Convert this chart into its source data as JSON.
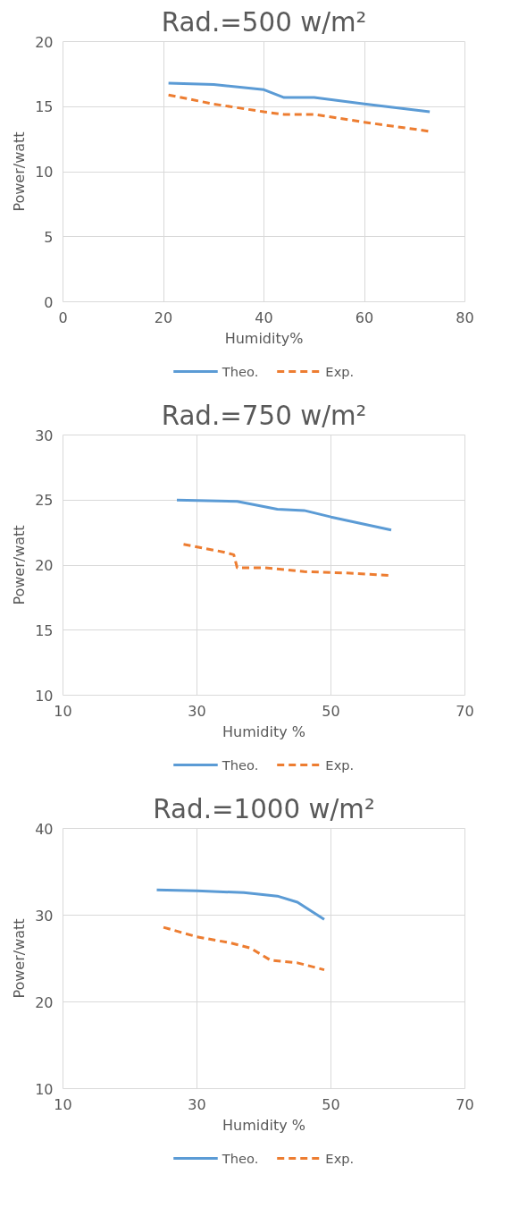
{
  "chart_data": [
    {
      "type": "line",
      "title": "Rad.=500 w/m²",
      "xlabel": "Humidity%",
      "ylabel": "Power/watt",
      "xlim": [
        0,
        80
      ],
      "ylim": [
        0,
        20
      ],
      "xticks": [
        0,
        20,
        40,
        60,
        80
      ],
      "yticks": [
        0,
        5,
        10,
        15,
        20
      ],
      "grid": true,
      "legend": "bottom",
      "series": [
        {
          "name": "Theo.",
          "color": "#5b9bd5",
          "line_style": "solid",
          "x": [
            21,
            30,
            40,
            44,
            50,
            60,
            73
          ],
          "values": [
            16.8,
            16.7,
            16.3,
            15.7,
            15.7,
            15.2,
            14.6
          ]
        },
        {
          "name": "Exp.",
          "color": "#ed7d31",
          "line_style": "dashed",
          "x": [
            21,
            30,
            40,
            44,
            50,
            60,
            73
          ],
          "values": [
            15.9,
            15.2,
            14.6,
            14.4,
            14.4,
            13.8,
            13.1
          ]
        }
      ]
    },
    {
      "type": "line",
      "title": "Rad.=750 w/m²",
      "xlabel": "Humidity %",
      "ylabel": "Power/watt",
      "xlim": [
        10,
        70
      ],
      "ylim": [
        10,
        30
      ],
      "xticks": [
        10,
        30,
        50,
        70
      ],
      "yticks": [
        10,
        15,
        20,
        25,
        30
      ],
      "grid": true,
      "legend": "bottom",
      "series": [
        {
          "name": "Theo.",
          "color": "#5b9bd5",
          "line_style": "solid",
          "x": [
            27,
            36,
            42,
            46,
            50,
            59
          ],
          "values": [
            25,
            24.9,
            24.3,
            24.2,
            23.7,
            22.7
          ]
        },
        {
          "name": "Exp.",
          "color": "#ed7d31",
          "line_style": "dashed",
          "x": [
            28,
            34,
            35.5,
            36,
            40,
            46,
            52,
            59
          ],
          "values": [
            21.6,
            21.0,
            20.8,
            19.8,
            19.8,
            19.5,
            19.4,
            19.2
          ]
        }
      ]
    },
    {
      "type": "line",
      "title": "Rad.=1000 w/m²",
      "xlabel": "Humidity %",
      "ylabel": "Power/watt",
      "xlim": [
        10,
        70
      ],
      "ylim": [
        10,
        40
      ],
      "xticks": [
        10,
        30,
        50,
        70
      ],
      "yticks": [
        10,
        20,
        30,
        40
      ],
      "grid": true,
      "legend": "bottom",
      "series": [
        {
          "name": "Theo.",
          "color": "#5b9bd5",
          "line_style": "solid",
          "x": [
            24,
            30,
            37,
            42,
            45,
            49
          ],
          "values": [
            32.9,
            32.8,
            32.6,
            32.2,
            31.5,
            29.5
          ]
        },
        {
          "name": "Exp.",
          "color": "#ed7d31",
          "line_style": "dashed",
          "x": [
            25,
            30,
            35,
            38,
            41,
            45,
            49
          ],
          "values": [
            28.6,
            27.5,
            26.8,
            26.2,
            24.8,
            24.5,
            23.7
          ]
        }
      ]
    }
  ]
}
